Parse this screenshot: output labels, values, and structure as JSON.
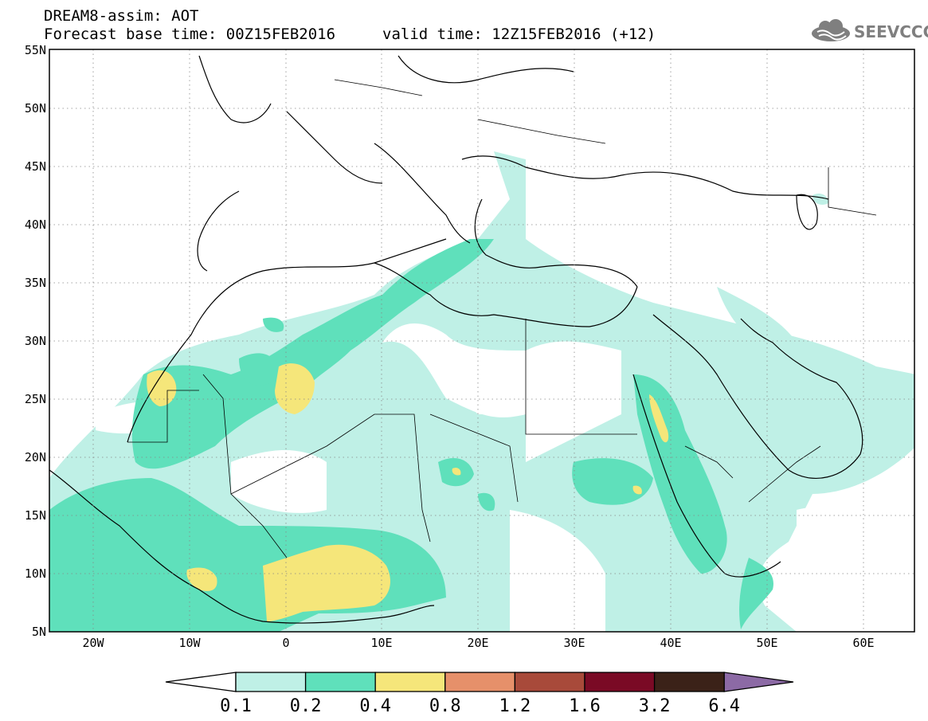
{
  "header": {
    "title": "DREAM8-assim: AOT",
    "base_time": "Forecast base time: 00Z15FEB2016",
    "valid_time": "valid time: 12Z15FEB2016 (+12)"
  },
  "logo": {
    "text": "SEEVCCC",
    "icon": "cloud-logo-icon"
  },
  "map": {
    "lat_labels": [
      "55N",
      "50N",
      "45N",
      "40N",
      "35N",
      "30N",
      "25N",
      "20N",
      "15N",
      "10N",
      "5N"
    ],
    "lon_labels": [
      "20W",
      "10W",
      "0",
      "10E",
      "20E",
      "30E",
      "40E",
      "50E",
      "60E"
    ],
    "extent": {
      "lon": [
        -25,
        65
      ],
      "lat": [
        5,
        55
      ]
    },
    "gridlines": "dotted",
    "field": "AOT (dust aerosol optical thickness)"
  },
  "colorbar": {
    "labels": [
      "0.1",
      "0.2",
      "0.4",
      "0.8",
      "1.2",
      "1.6",
      "3.2",
      "6.4"
    ],
    "colors": [
      "#ffffff",
      "#bff0e6",
      "#5fe0bb",
      "#f5e67a",
      "#e6906a",
      "#a84a3a",
      "#7a0a25",
      "#3b2218",
      "#8c6aa5"
    ]
  }
}
